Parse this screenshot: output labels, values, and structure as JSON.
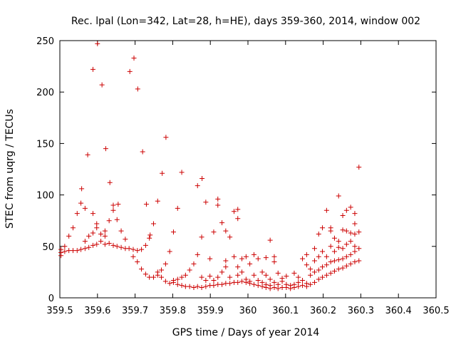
{
  "chart_data": {
    "type": "scatter",
    "title": "Rec. lpal (Lon=342, Lat=28, h=HE), days 359-360, 2014, window 002",
    "xlabel": "GPS time / Days of year 2014",
    "ylabel": "STEC from uqrg / TECUs",
    "xlim": [
      359.5,
      360.5
    ],
    "ylim": [
      0,
      250
    ],
    "x_ticks": [
      359.5,
      359.6,
      359.7,
      359.8,
      359.9,
      360.0,
      360.1,
      360.2,
      360.3,
      360.4,
      360.5
    ],
    "x_tick_labels": [
      "359.5",
      "359.6",
      "359.7",
      "359.8",
      "359.9",
      "360",
      "360.1",
      "360.2",
      "360.3",
      "360.4",
      "360.5"
    ],
    "y_ticks": [
      0,
      50,
      100,
      150,
      200,
      250
    ],
    "y_tick_labels": [
      "0",
      "50",
      "100",
      "150",
      "200",
      "250"
    ],
    "grid": false,
    "marker": "plus",
    "series": [
      {
        "color": "#cc0000",
        "points": [
          [
            359.503,
            41
          ],
          [
            359.503,
            44
          ],
          [
            359.503,
            47
          ],
          [
            359.513,
            45
          ],
          [
            359.513,
            50
          ],
          [
            359.524,
            46
          ],
          [
            359.524,
            60
          ],
          [
            359.535,
            46
          ],
          [
            359.535,
            68
          ],
          [
            359.546,
            46
          ],
          [
            359.546,
            82
          ],
          [
            359.556,
            47
          ],
          [
            359.556,
            92
          ],
          [
            359.558,
            106
          ],
          [
            359.567,
            48
          ],
          [
            359.567,
            55
          ],
          [
            359.567,
            87
          ],
          [
            359.574,
            139
          ],
          [
            359.577,
            49
          ],
          [
            359.577,
            60
          ],
          [
            359.588,
            51
          ],
          [
            359.588,
            63
          ],
          [
            359.588,
            82
          ],
          [
            359.588,
            222
          ],
          [
            359.598,
            52
          ],
          [
            359.598,
            68
          ],
          [
            359.598,
            72
          ],
          [
            359.6,
            247
          ],
          [
            359.609,
            55
          ],
          [
            359.609,
            62
          ],
          [
            359.612,
            207
          ],
          [
            359.62,
            52
          ],
          [
            359.62,
            60
          ],
          [
            359.62,
            65
          ],
          [
            359.622,
            145
          ],
          [
            359.631,
            53
          ],
          [
            359.631,
            75
          ],
          [
            359.633,
            112
          ],
          [
            359.642,
            51
          ],
          [
            359.642,
            85
          ],
          [
            359.642,
            90
          ],
          [
            359.652,
            50
          ],
          [
            359.652,
            76
          ],
          [
            359.655,
            91
          ],
          [
            359.663,
            49
          ],
          [
            359.663,
            65
          ],
          [
            359.674,
            48
          ],
          [
            359.674,
            57
          ],
          [
            359.684,
            48
          ],
          [
            359.686,
            220
          ],
          [
            359.695,
            47
          ],
          [
            359.695,
            40
          ],
          [
            359.697,
            233
          ],
          [
            359.706,
            46
          ],
          [
            359.706,
            35
          ],
          [
            359.707,
            203
          ],
          [
            359.717,
            47
          ],
          [
            359.717,
            28
          ],
          [
            359.72,
            142
          ],
          [
            359.728,
            51
          ],
          [
            359.728,
            23
          ],
          [
            359.73,
            91
          ],
          [
            359.738,
            58
          ],
          [
            359.738,
            20
          ],
          [
            359.74,
            61
          ],
          [
            359.749,
            20
          ],
          [
            359.749,
            72
          ],
          [
            359.76,
            22
          ],
          [
            359.76,
            25
          ],
          [
            359.76,
            94
          ],
          [
            359.77,
            20
          ],
          [
            359.77,
            27
          ],
          [
            359.772,
            121
          ],
          [
            359.781,
            16
          ],
          [
            359.781,
            33
          ],
          [
            359.782,
            156
          ],
          [
            359.792,
            14
          ],
          [
            359.792,
            45
          ],
          [
            359.802,
            15
          ],
          [
            359.802,
            17
          ],
          [
            359.802,
            64
          ],
          [
            359.813,
            13
          ],
          [
            359.813,
            18
          ],
          [
            359.813,
            87
          ],
          [
            359.824,
            12
          ],
          [
            359.824,
            20
          ],
          [
            359.824,
            122
          ],
          [
            359.834,
            11
          ],
          [
            359.834,
            22
          ],
          [
            359.845,
            11
          ],
          [
            359.845,
            27
          ],
          [
            359.856,
            10
          ],
          [
            359.856,
            33
          ],
          [
            359.866,
            11
          ],
          [
            359.866,
            42
          ],
          [
            359.866,
            109
          ],
          [
            359.877,
            10
          ],
          [
            359.877,
            20
          ],
          [
            359.877,
            59
          ],
          [
            359.878,
            116
          ],
          [
            359.888,
            11
          ],
          [
            359.888,
            17
          ],
          [
            359.888,
            93
          ],
          [
            359.899,
            12
          ],
          [
            359.899,
            21
          ],
          [
            359.899,
            38
          ],
          [
            359.909,
            12
          ],
          [
            359.909,
            17
          ],
          [
            359.909,
            64
          ],
          [
            359.92,
            13
          ],
          [
            359.92,
            20
          ],
          [
            359.92,
            90
          ],
          [
            359.92,
            96
          ],
          [
            359.931,
            13
          ],
          [
            359.931,
            25
          ],
          [
            359.931,
            73
          ],
          [
            359.941,
            14
          ],
          [
            359.941,
            30
          ],
          [
            359.941,
            36
          ],
          [
            359.941,
            65
          ],
          [
            359.952,
            14
          ],
          [
            359.952,
            20
          ],
          [
            359.952,
            59
          ],
          [
            359.963,
            15
          ],
          [
            359.963,
            40
          ],
          [
            359.963,
            84
          ],
          [
            359.973,
            15
          ],
          [
            359.973,
            22
          ],
          [
            359.973,
            30
          ],
          [
            359.973,
            86
          ],
          [
            359.973,
            77
          ],
          [
            359.984,
            16
          ],
          [
            359.984,
            25
          ],
          [
            359.984,
            38
          ],
          [
            359.995,
            15
          ],
          [
            359.995,
            18
          ],
          [
            359.995,
            40
          ],
          [
            360.005,
            14
          ],
          [
            360.005,
            16
          ],
          [
            360.005,
            33
          ],
          [
            360.016,
            13
          ],
          [
            360.016,
            22
          ],
          [
            360.016,
            42
          ],
          [
            360.027,
            12
          ],
          [
            360.027,
            17
          ],
          [
            360.027,
            38
          ],
          [
            360.038,
            11
          ],
          [
            360.038,
            15
          ],
          [
            360.038,
            25
          ],
          [
            360.048,
            10
          ],
          [
            360.048,
            13
          ],
          [
            360.048,
            22
          ],
          [
            360.048,
            39
          ],
          [
            360.059,
            9
          ],
          [
            360.059,
            12
          ],
          [
            360.059,
            18
          ],
          [
            360.059,
            56
          ],
          [
            360.07,
            10
          ],
          [
            360.07,
            15
          ],
          [
            360.07,
            35
          ],
          [
            360.07,
            40
          ],
          [
            360.08,
            9
          ],
          [
            360.08,
            13
          ],
          [
            360.08,
            24
          ],
          [
            360.091,
            10
          ],
          [
            360.091,
            16
          ],
          [
            360.091,
            19
          ],
          [
            360.102,
            10
          ],
          [
            360.102,
            13
          ],
          [
            360.102,
            21
          ],
          [
            360.113,
            9
          ],
          [
            360.113,
            12
          ],
          [
            360.123,
            10
          ],
          [
            360.123,
            13
          ],
          [
            360.123,
            24
          ],
          [
            360.134,
            11
          ],
          [
            360.134,
            15
          ],
          [
            360.134,
            20
          ],
          [
            360.145,
            12
          ],
          [
            360.145,
            17
          ],
          [
            360.145,
            38
          ],
          [
            360.156,
            11
          ],
          [
            360.156,
            14
          ],
          [
            360.156,
            32
          ],
          [
            360.156,
            42
          ],
          [
            360.166,
            13
          ],
          [
            360.166,
            22
          ],
          [
            360.166,
            28
          ],
          [
            360.177,
            15
          ],
          [
            360.177,
            25
          ],
          [
            360.177,
            36
          ],
          [
            360.177,
            48
          ],
          [
            360.188,
            18
          ],
          [
            360.188,
            27
          ],
          [
            360.188,
            40
          ],
          [
            360.188,
            62
          ],
          [
            360.198,
            20
          ],
          [
            360.198,
            30
          ],
          [
            360.198,
            45
          ],
          [
            360.198,
            68
          ],
          [
            360.209,
            22
          ],
          [
            360.209,
            32
          ],
          [
            360.209,
            40
          ],
          [
            360.209,
            85
          ],
          [
            360.22,
            24
          ],
          [
            360.22,
            35
          ],
          [
            360.22,
            50
          ],
          [
            360.22,
            65
          ],
          [
            360.22,
            68
          ],
          [
            360.23,
            26
          ],
          [
            360.23,
            36
          ],
          [
            360.23,
            45
          ],
          [
            360.23,
            58
          ],
          [
            360.241,
            28
          ],
          [
            360.241,
            37
          ],
          [
            360.241,
            49
          ],
          [
            360.241,
            55
          ],
          [
            360.241,
            99
          ],
          [
            360.252,
            29
          ],
          [
            360.252,
            38
          ],
          [
            360.252,
            48
          ],
          [
            360.252,
            66
          ],
          [
            360.252,
            80
          ],
          [
            360.262,
            31
          ],
          [
            360.262,
            40
          ],
          [
            360.262,
            52
          ],
          [
            360.262,
            65
          ],
          [
            360.262,
            85
          ],
          [
            360.273,
            33
          ],
          [
            360.273,
            42
          ],
          [
            360.273,
            55
          ],
          [
            360.273,
            63
          ],
          [
            360.273,
            88
          ],
          [
            360.284,
            35
          ],
          [
            360.284,
            45
          ],
          [
            360.284,
            50
          ],
          [
            360.284,
            62
          ],
          [
            360.284,
            72
          ],
          [
            360.284,
            82
          ],
          [
            360.295,
            36
          ],
          [
            360.295,
            48
          ],
          [
            360.295,
            64
          ],
          [
            360.295,
            127
          ]
        ]
      }
    ]
  }
}
